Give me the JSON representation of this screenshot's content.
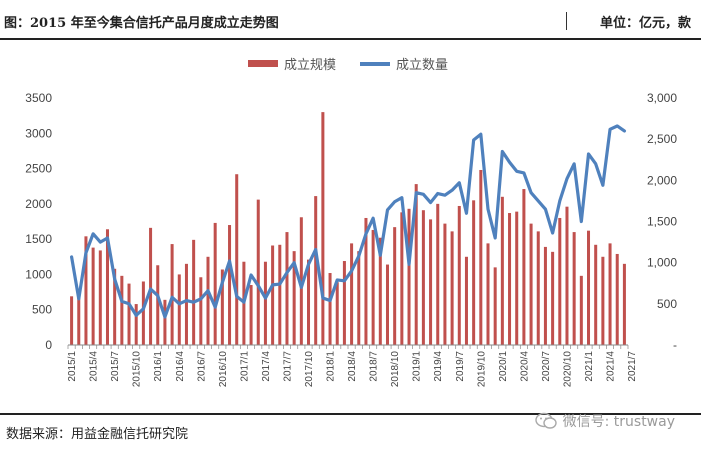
{
  "header": {
    "title": "图：2015 年至今集合信托产品月度成立走势图",
    "unit": "单位：亿元，款"
  },
  "footer": {
    "source": "数据来源：用益金融信托研究院",
    "watermark": "微信号: trustway"
  },
  "colors": {
    "bar": "#C0504D",
    "line": "#4F81BD"
  },
  "chart_data": {
    "type": "bar",
    "legend_position": "top-center",
    "grid": false,
    "series": [
      {
        "name": "成立规模",
        "type": "bar",
        "axis": "left",
        "values": [
          690,
          680,
          1540,
          1380,
          1340,
          1640,
          1080,
          980,
          870,
          580,
          900,
          1660,
          1130,
          640,
          1430,
          1000,
          1150,
          1490,
          960,
          1250,
          1730,
          1070,
          1700,
          2420,
          1180,
          850,
          2060,
          1180,
          1410,
          1420,
          1600,
          1330,
          1810,
          1210,
          2110,
          3300,
          1020,
          890,
          1190,
          1440,
          1330,
          1800,
          1630,
          1520,
          1140,
          1670,
          1880,
          1930,
          2280,
          1910,
          1780,
          2000,
          1720,
          1610,
          1970,
          1250,
          2050,
          2480,
          1440,
          1100,
          2100,
          1870,
          1890,
          2210,
          1720,
          1610,
          1390,
          1320,
          1800,
          1960,
          1600,
          980,
          1620,
          1420,
          1250,
          1440,
          1290,
          1150
        ]
      },
      {
        "name": "成立数量",
        "type": "line",
        "axis": "right",
        "values": [
          1070,
          560,
          1120,
          1350,
          1250,
          1300,
          800,
          530,
          500,
          360,
          440,
          680,
          600,
          340,
          580,
          500,
          540,
          520,
          560,
          660,
          460,
          760,
          1020,
          590,
          520,
          850,
          720,
          570,
          730,
          740,
          880,
          1000,
          700,
          980,
          1160,
          570,
          540,
          790,
          780,
          900,
          1080,
          1350,
          1540,
          1090,
          1640,
          1740,
          1790,
          980,
          1850,
          1830,
          1730,
          1840,
          1820,
          1880,
          1970,
          1600,
          2490,
          2560,
          1650,
          1300,
          2350,
          2220,
          2110,
          2090,
          1850,
          1750,
          1650,
          1360,
          1750,
          2020,
          2200,
          1500,
          2320,
          2200,
          1940,
          2620,
          2660,
          2600
        ]
      }
    ],
    "x_tick_labels": [
      "2015/1",
      "2015/4",
      "2015/7",
      "2015/10",
      "2016/1",
      "2016/4",
      "2016/7",
      "2016/10",
      "2017/1",
      "2017/4",
      "2017/7",
      "2017/10",
      "2018/1",
      "2018/4",
      "2018/7",
      "2018/10",
      "2019/1",
      "2019/4",
      "2019/7",
      "2019/10",
      "2020/1",
      "2020/4",
      "2020/7",
      "2020/10",
      "2021/1",
      "2021/4",
      "2021/7"
    ],
    "x_tick_step_months": 3,
    "left_axis": {
      "ylim": [
        0,
        3500
      ],
      "ticks": [
        "0",
        "500",
        "1000",
        "1500",
        "2000",
        "2500",
        "3000",
        "3500"
      ]
    },
    "right_axis": {
      "ylim": [
        0,
        3000
      ],
      "ticks": [
        "-",
        "500",
        "1,000",
        "1,500",
        "2,000",
        "2,500",
        "3,000"
      ]
    }
  }
}
